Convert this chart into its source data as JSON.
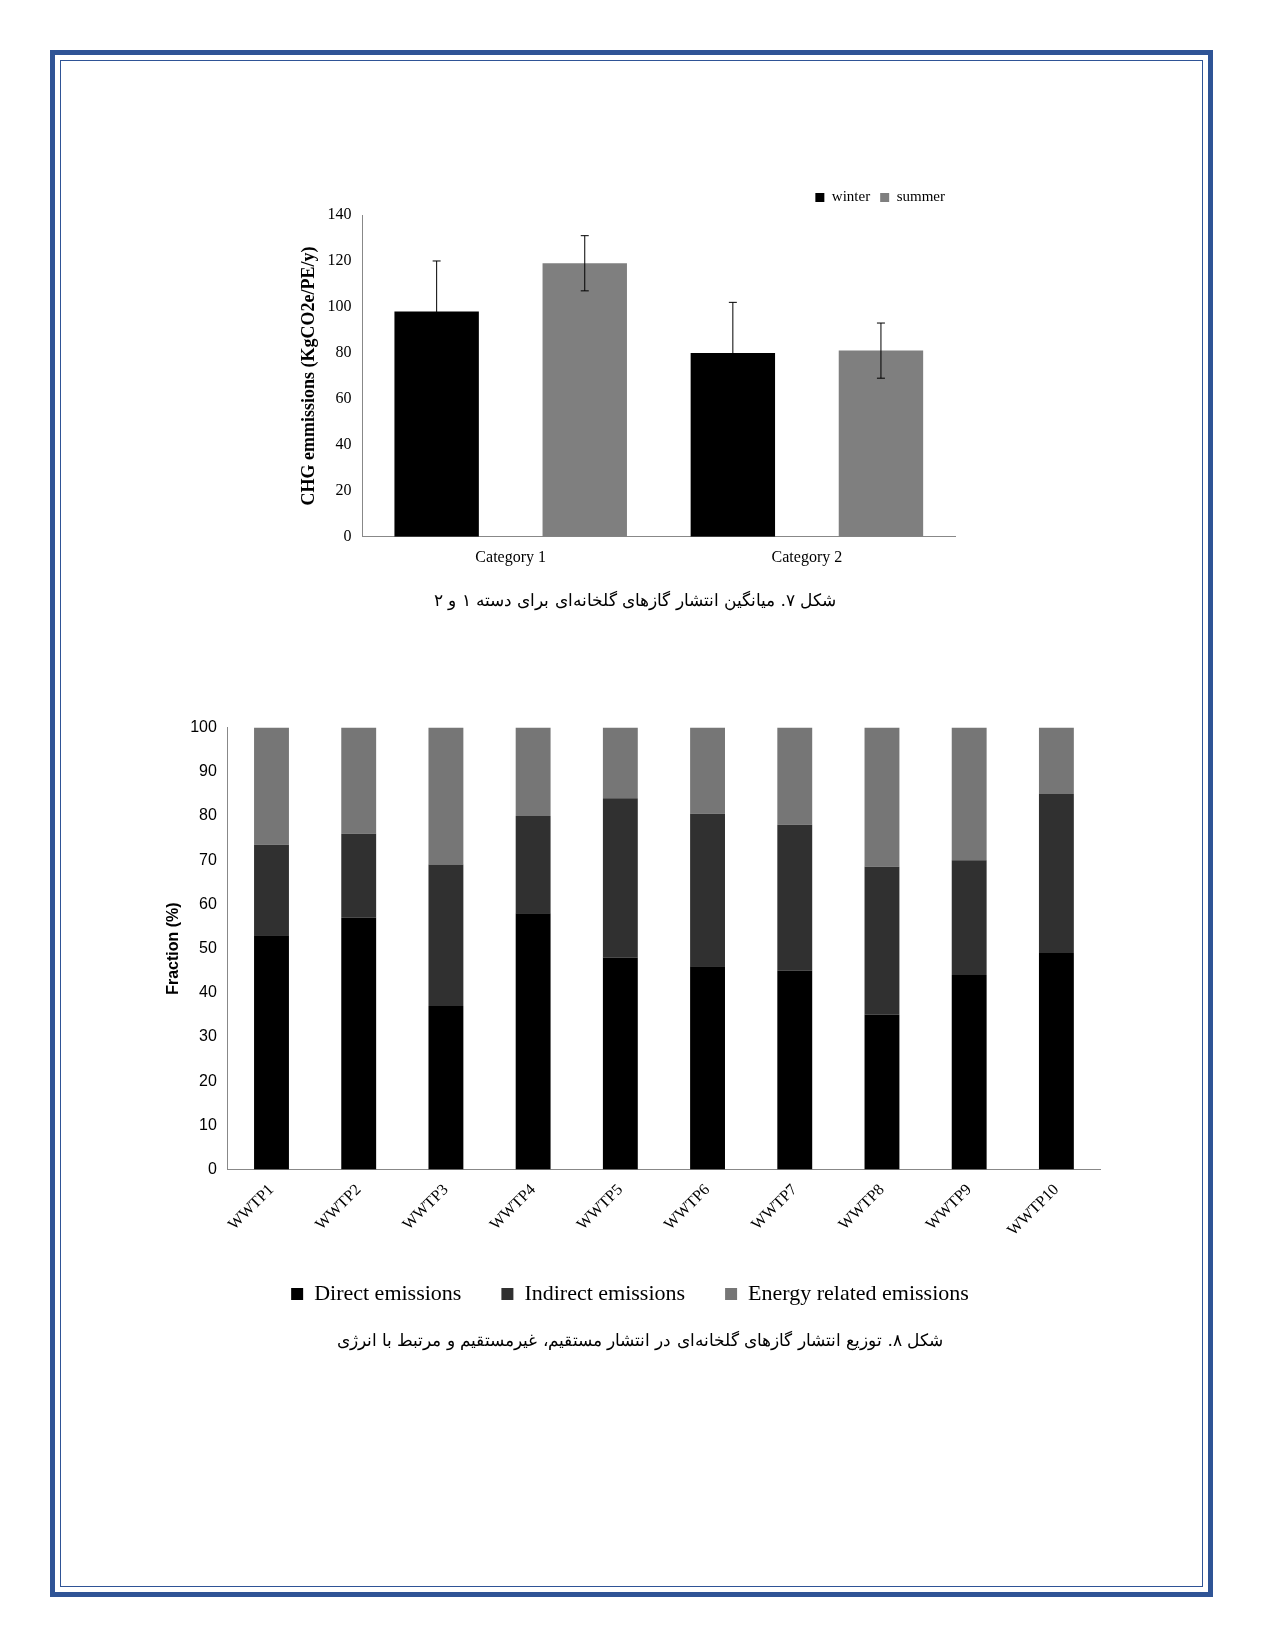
{
  "chart_data": [
    {
      "type": "bar",
      "ylabel": "CHG emmissions (KgCO2e/PE/y)",
      "categories": [
        "Category 1",
        "Category 2"
      ],
      "series": [
        {
          "name": "winter",
          "color": "#000000",
          "values": [
            98,
            80
          ],
          "errors": [
            22,
            22
          ]
        },
        {
          "name": "summer",
          "color": "#7f7f7f",
          "values": [
            119,
            81
          ],
          "errors": [
            12,
            12
          ]
        }
      ],
      "ylim": [
        0,
        140
      ],
      "yticks": [
        0,
        20,
        40,
        60,
        80,
        100,
        120,
        140
      ],
      "grid": false,
      "legend": "top right",
      "annotations": [
        "شکل ۷. میانگین انتشار گازهای گلخانه‌ای برای دسته ۱ و ۲"
      ]
    },
    {
      "type": "bar",
      "stacked": true,
      "ylabel": "Fraction (%)",
      "categories": [
        "WWTP1",
        "WWTP2",
        "WWTP3",
        "WWTP4",
        "WWTP5",
        "WWTP6",
        "WWTP7",
        "WWTP8",
        "WWTP9",
        "WWTP10"
      ],
      "series": [
        {
          "name": "Direct emissions",
          "color": "#000000",
          "values": [
            53,
            57,
            37,
            58,
            48,
            46,
            45,
            35,
            44,
            49
          ]
        },
        {
          "name": "Indirect emissions",
          "color": "#303030",
          "values": [
            20.5,
            19,
            32,
            22,
            36,
            34.5,
            33,
            33.5,
            26,
            36
          ]
        },
        {
          "name": "Energy related emissions",
          "color": "#767676",
          "values": [
            26.5,
            24,
            31,
            20,
            16,
            19.5,
            22,
            31.5,
            30,
            15
          ]
        }
      ],
      "ylim": [
        0,
        100
      ],
      "yticks": [
        0,
        10,
        20,
        30,
        40,
        50,
        60,
        70,
        80,
        90,
        100
      ],
      "grid": false,
      "legend": "bottom",
      "annotations": [
        "شکل ۸. توزیع انتشار گازهای گلخانه‌ای در انتشار مستقیم، غیرمستقیم و مرتبط با انرژی"
      ]
    }
  ]
}
